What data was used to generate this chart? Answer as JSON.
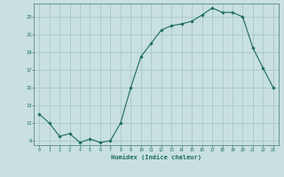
{
  "x": [
    0,
    1,
    2,
    3,
    4,
    5,
    6,
    7,
    8,
    9,
    10,
    11,
    12,
    13,
    14,
    15,
    16,
    17,
    18,
    19,
    20,
    21,
    22,
    23
  ],
  "y": [
    12.0,
    11.0,
    9.5,
    9.8,
    8.8,
    9.2,
    8.8,
    9.0,
    11.0,
    15.0,
    18.5,
    20.0,
    21.5,
    22.0,
    22.2,
    22.5,
    23.2,
    24.0,
    23.5,
    23.5,
    23.0,
    19.5,
    17.2,
    15.0
  ],
  "line_color": "#1a6b5a",
  "marker_color": "#1a6b5a",
  "bg_color": "#c8e0e0",
  "grid_color": "#a8c8c8",
  "xlabel": "Humidex (Indice chaleur)",
  "xlim": [
    -0.5,
    23.5
  ],
  "ylim": [
    8.5,
    24.5
  ],
  "yticks": [
    9,
    11,
    13,
    15,
    17,
    19,
    21,
    23
  ],
  "xticks": [
    0,
    1,
    2,
    3,
    4,
    5,
    6,
    7,
    8,
    9,
    10,
    11,
    12,
    13,
    14,
    15,
    16,
    17,
    18,
    19,
    20,
    21,
    22,
    23
  ],
  "tick_color": "#1a6b5a",
  "label_color": "#1a6b5a",
  "axis_color": "#5a8a80"
}
